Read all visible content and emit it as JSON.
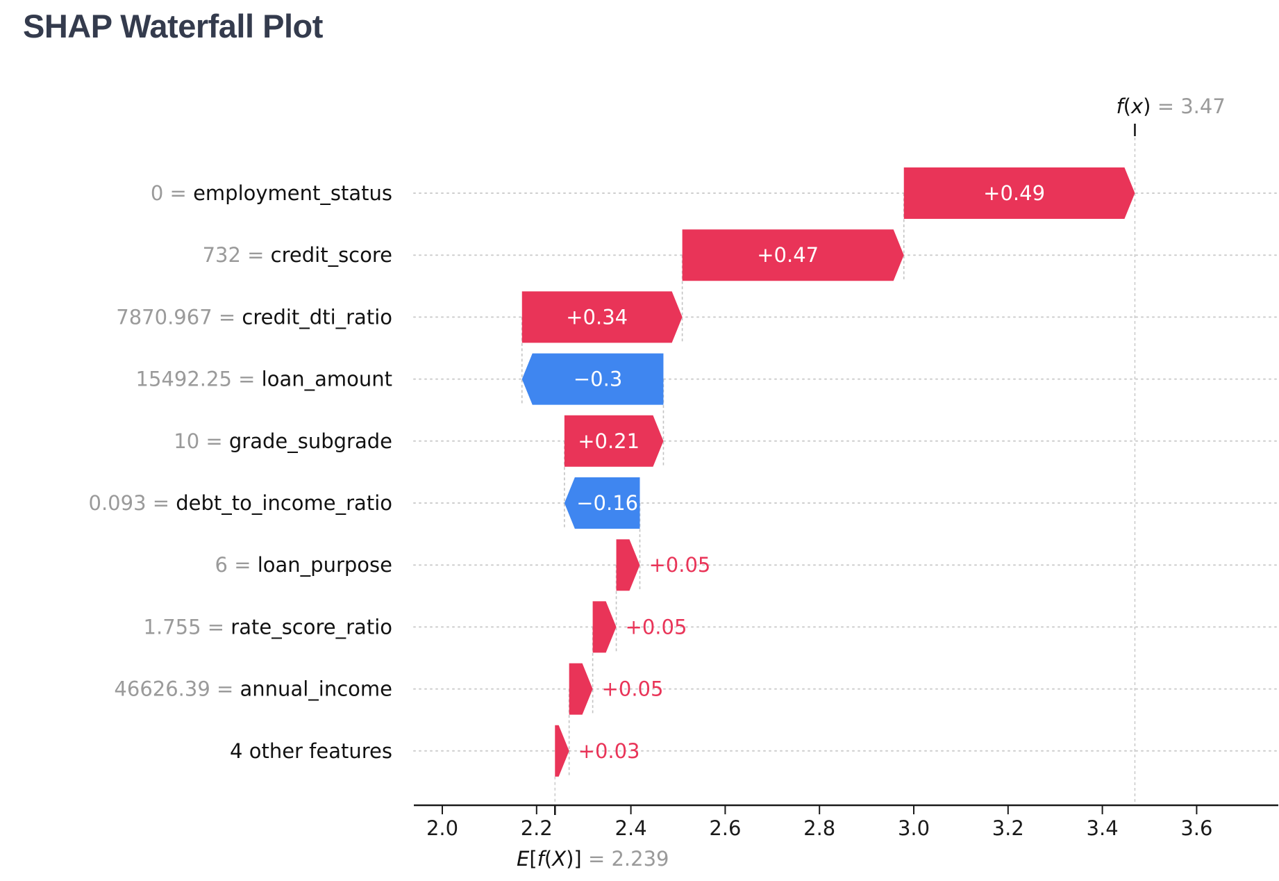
{
  "title": "SHAP Waterfall Plot",
  "colors": {
    "positive_bar": "#e93458",
    "negative_bar": "#3f86f0",
    "bar_label_inside": "#ffffff",
    "bar_label_outside": "#e93458",
    "muted_text": "#9a9a9a",
    "text": "#111111",
    "title_text": "#343b4d",
    "gridline": "#cdcdcd",
    "connector": "#c2c2c2",
    "axis": "#1a1a1a"
  },
  "fx_annotation": {
    "math": "f(x)",
    "value_text": "= 3.47"
  },
  "base_annotation": {
    "math": "E[f(X)]",
    "value_text": "= 2.239"
  },
  "chart_data": {
    "type": "waterfall",
    "title": "SHAP Waterfall Plot",
    "base_value": 2.239,
    "fx_value": 3.47,
    "x_axis": {
      "min": 2.0,
      "max": 3.6,
      "ticks": [
        2.0,
        2.2,
        2.4,
        2.6,
        2.8,
        3.0,
        3.2,
        3.4,
        3.6
      ],
      "tick_labels": [
        "2.0",
        "2.2",
        "2.4",
        "2.6",
        "2.8",
        "3.0",
        "3.2",
        "3.4",
        "3.6"
      ],
      "grid": "horizontal-dotted"
    },
    "legend": "none",
    "rows": [
      {
        "data_value": "0",
        "feature": "employment_status",
        "shap": 0.49,
        "display": "+0.49",
        "label_inside": true
      },
      {
        "data_value": "732",
        "feature": "credit_score",
        "shap": 0.47,
        "display": "+0.47",
        "label_inside": true
      },
      {
        "data_value": "7870.967",
        "feature": "credit_dti_ratio",
        "shap": 0.34,
        "display": "+0.34",
        "label_inside": true
      },
      {
        "data_value": "15492.25",
        "feature": "loan_amount",
        "shap": -0.3,
        "display": "−0.3",
        "label_inside": true
      },
      {
        "data_value": "10",
        "feature": "grade_subgrade",
        "shap": 0.21,
        "display": "+0.21",
        "label_inside": true
      },
      {
        "data_value": "0.093",
        "feature": "debt_to_income_ratio",
        "shap": -0.16,
        "display": "−0.16",
        "label_inside": true
      },
      {
        "data_value": "6",
        "feature": "loan_purpose",
        "shap": 0.05,
        "display": "+0.05",
        "label_inside": false
      },
      {
        "data_value": "1.755",
        "feature": "rate_score_ratio",
        "shap": 0.05,
        "display": "+0.05",
        "label_inside": false
      },
      {
        "data_value": "46626.39",
        "feature": "annual_income",
        "shap": 0.05,
        "display": "+0.05",
        "label_inside": false
      },
      {
        "data_value": null,
        "feature": "4 other features",
        "shap": 0.03,
        "display": "+0.03",
        "label_inside": false
      }
    ]
  }
}
